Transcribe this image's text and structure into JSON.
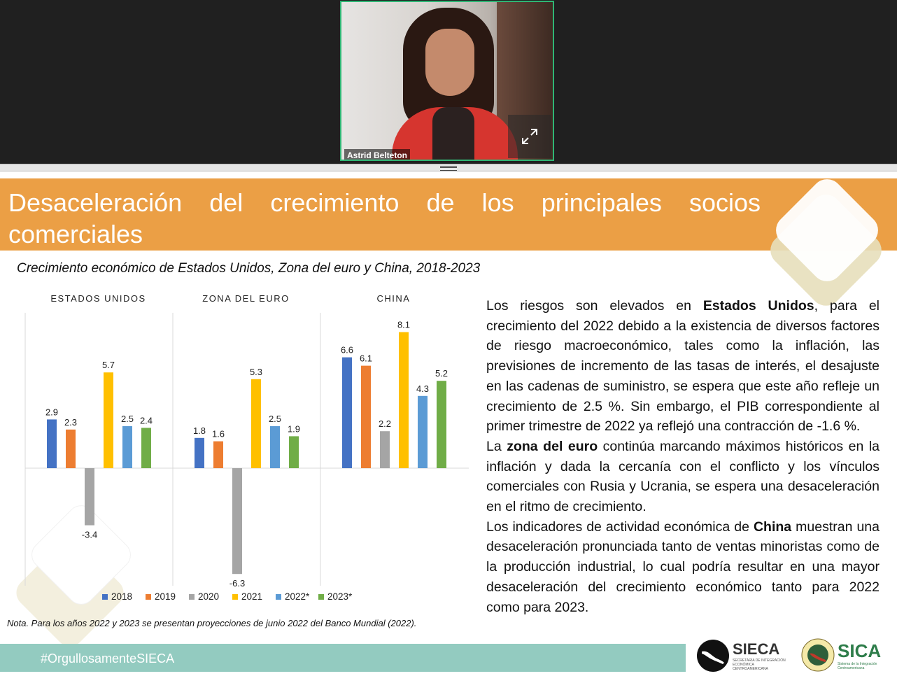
{
  "meeting": {
    "participant_name": "Astrid Belteton"
  },
  "slide": {
    "title": "Desaceleración del crecimiento de los principales socios comerciales",
    "chart_subtitle": "Crecimiento económico de Estados Unidos, Zona del euro y China, 2018-2023",
    "note": "Nota. Para los años 2022 y 2023 se presentan proyecciones de junio 2022 del Banco Mundial (2022).",
    "body": {
      "p1_a": "Los riesgos son elevados en ",
      "p1_b": "Estados Unidos",
      "p1_c": ", para el crecimiento del 2022 debido a la existencia de diversos factores de riesgo macroeconómico, tales como la inflación, las previsiones de incremento de las tasas de interés, el desajuste en las cadenas de suministro, se espera que este año refleje un crecimiento de 2.5 %. Sin embargo, el PIB correspondiente al primer trimestre de 2022 ya reflejó una contracción de -1.6 %.",
      "p2_a": "La ",
      "p2_b": "zona del euro",
      "p2_c": " continúa marcando máximos históricos en la inflación y dada la cercanía con el conflicto y los vínculos comerciales con Rusia y Ucrania, se espera una desaceleración en el ritmo de crecimiento.",
      "p3_a": "Los indicadores de actividad económica de ",
      "p3_b": "China",
      "p3_c": " muestran una desaceleración pronunciada tanto de ventas minoristas como de la producción industrial, lo cual podría resultar en una mayor desaceleración del crecimiento económico tanto para 2022 como para 2023."
    },
    "footer_hashtag": "#OrgullosamenteSIECA",
    "logos": {
      "sieca": "SIECA",
      "sieca_sub": "SECRETARÍA DE INTEGRACIÓN ECONÓMICA CENTROAMERICANA",
      "sica": "SICA",
      "sica_sub": "Sistema de la Integración Centroamericana"
    }
  },
  "chart_data": {
    "type": "bar",
    "title": "Crecimiento económico de Estados Unidos, Zona del euro y China, 2018-2023",
    "categories": [
      "ESTADOS UNIDOS",
      "ZONA DEL EURO",
      "CHINA"
    ],
    "series": [
      {
        "name": "2018",
        "color": "#4472c4",
        "values": [
          2.9,
          1.8,
          6.6
        ]
      },
      {
        "name": "2019",
        "color": "#ed7d31",
        "values": [
          2.3,
          1.6,
          6.1
        ]
      },
      {
        "name": "2020",
        "color": "#a5a5a5",
        "values": [
          -3.4,
          -6.3,
          2.2
        ]
      },
      {
        "name": "2021",
        "color": "#ffc000",
        "values": [
          5.7,
          5.3,
          8.1
        ]
      },
      {
        "name": "2022*",
        "color": "#5b9bd5",
        "values": [
          2.5,
          2.5,
          4.3
        ]
      },
      {
        "name": "2023*",
        "color": "#70ad47",
        "values": [
          2.4,
          1.9,
          5.2
        ]
      }
    ],
    "legend_position": "bottom",
    "grid": false
  },
  "colors": {
    "title_band": "#eb9f45",
    "footer_bar": "#93cbc0",
    "tile_border": "#2fb574"
  }
}
